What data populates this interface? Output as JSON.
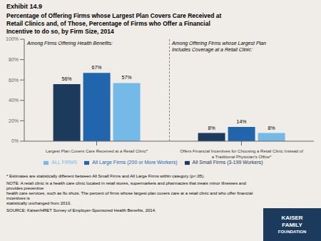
{
  "chart_data": {
    "type": "bar",
    "title": "Exhibit 14.9",
    "subtitle": "Percentage of Offering Firms whose Largest Plan Covers Care Received at\nRetail Clinics and, of Those, Percentage of Firms who Offer a Financial\nIncentive to do so, by Firm Size, 2014",
    "categories": [
      "Largest Plan Covers Care Received at a Retail Clinic*",
      "Offers Financial Incentives for Choosing a Retail Clinic Instead of\na Traditional Physician's Office*"
    ],
    "series": [
      {
        "name": "All Small Firms (3-199 Workers)",
        "color": "#1b3a5c",
        "values": [
          56,
          8
        ],
        "value_labels": [
          "56%",
          "8%"
        ]
      },
      {
        "name": "All Large Firms (200 or More Workers)",
        "color": "#2166ac",
        "values": [
          67,
          14
        ],
        "value_labels": [
          "67%",
          "14%"
        ]
      },
      {
        "name": "ALL FIRMS",
        "color": "#74b9e8",
        "values": [
          57,
          8
        ],
        "value_labels": [
          "57%",
          "8%"
        ]
      }
    ],
    "ylim": [
      0,
      100
    ],
    "yticks": [
      {
        "value": 0,
        "label": "0%"
      },
      {
        "value": 20,
        "label": "20%"
      },
      {
        "value": 40,
        "label": "40%"
      },
      {
        "value": 60,
        "label": "60%"
      },
      {
        "value": 80,
        "label": "80%"
      },
      {
        "value": 100,
        "label": "100%"
      }
    ],
    "grid": false,
    "legend": "bottom",
    "data_labels": true,
    "annotations": [
      "Among Firms Offering Health Benefits:",
      "Among Offering Firms whose Largest Plan\nIncludes  Coverage at a Retail Clinic:"
    ],
    "footnotes": [
      "* Estimates are statistically different between All Small Firms and All Large Firms within category (p<.05).",
      "NOTE: A retail clinic is a health care clinic located in retail stores, supermarkets and pharmacies that treats minor illnesses and provides preventive\nhealth care services, such as flu shots. The percent of firms whose largest plan covers care at a retail clinic and who offer financial incentives is\nstatistically unchanged from 2013.",
      "SOURCE: Kaiser/HRET Survey of Employer-Sponsored Health Benefits, 2014."
    ],
    "logo": [
      "KAISER",
      "FAMILY",
      "FOUNDATION"
    ]
  }
}
